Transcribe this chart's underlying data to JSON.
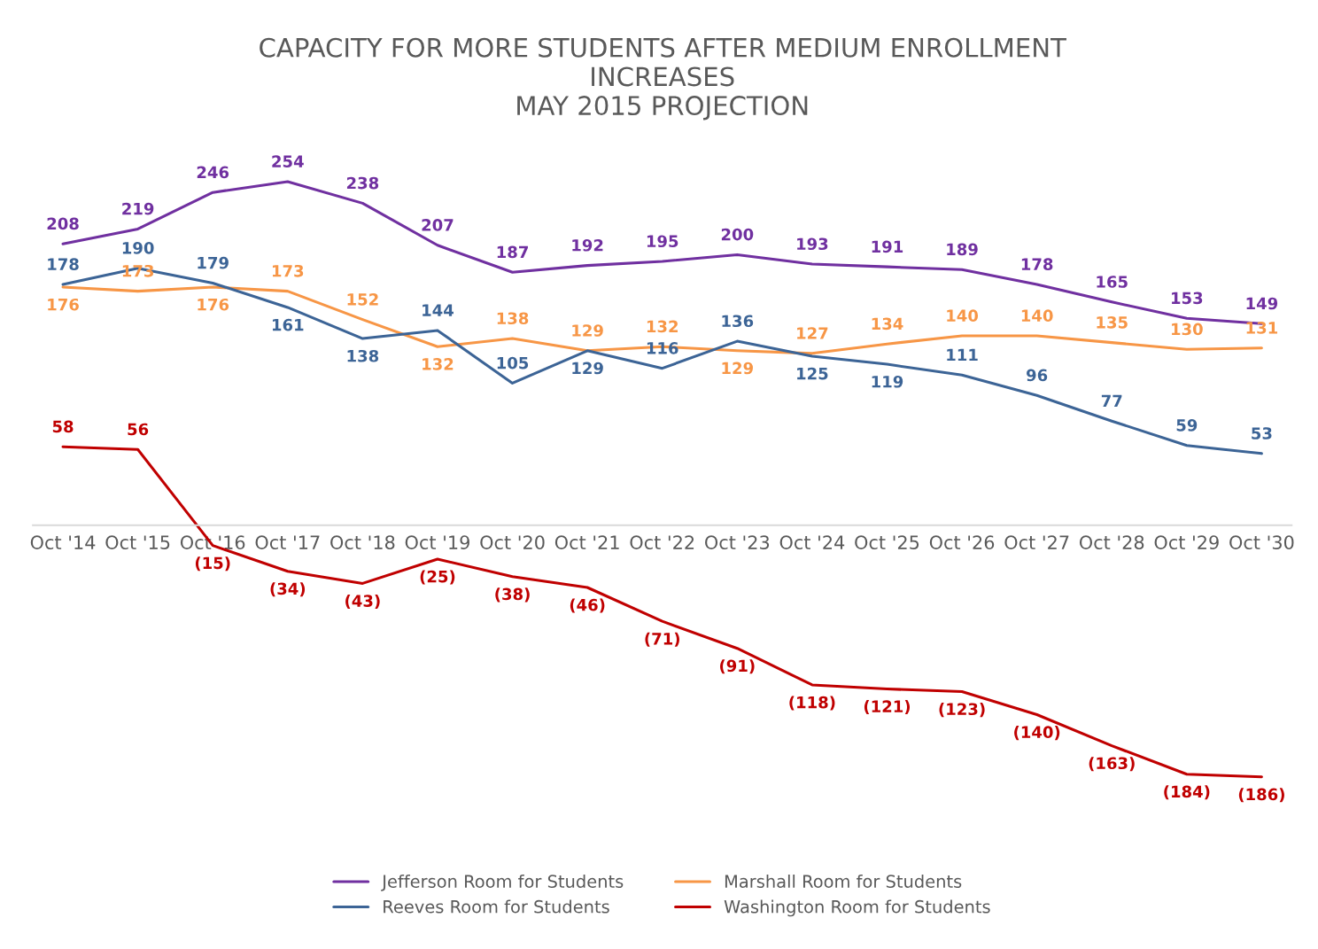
{
  "chart_data": {
    "type": "line",
    "title": "CAPACITY FOR MORE STUDENTS AFTER MEDIUM ENROLLMENT\nINCREASES\nMAY 2015 PROJECTION",
    "categories": [
      "Oct '14",
      "Oct '15",
      "Oct '16",
      "Oct '17",
      "Oct '18",
      "Oct '19",
      "Oct '20",
      "Oct '21",
      "Oct '22",
      "Oct '23",
      "Oct '24",
      "Oct '25",
      "Oct '26",
      "Oct '27",
      "Oct '28",
      "Oct '29",
      "Oct '30"
    ],
    "series": [
      {
        "name": "Jefferson Room for Students",
        "color": "#7030a0",
        "values": [
          208,
          219,
          246,
          254,
          238,
          207,
          187,
          192,
          195,
          200,
          193,
          191,
          189,
          178,
          165,
          153,
          149
        ],
        "value_labels": [
          "208",
          "219",
          "246",
          "254",
          "238",
          "207",
          "187",
          "192",
          "195",
          "200",
          "193",
          "191",
          "189",
          "178",
          "165",
          "153",
          "149"
        ]
      },
      {
        "name": "Marshall Room for Students",
        "color": "#f79646",
        "values": [
          176,
          173,
          176,
          173,
          152,
          132,
          138,
          129,
          132,
          129,
          127,
          134,
          140,
          140,
          135,
          130,
          131
        ],
        "value_labels": [
          "176",
          "173",
          "176",
          "173",
          "152",
          "132",
          "138",
          "129",
          "132",
          "129",
          "127",
          "134",
          "140",
          "140",
          "135",
          "130",
          "131"
        ]
      },
      {
        "name": "Reeves Room for Students",
        "color": "#3c6496",
        "values": [
          178,
          190,
          179,
          161,
          138,
          144,
          105,
          129,
          116,
          136,
          125,
          119,
          111,
          96,
          77,
          59,
          53
        ],
        "value_labels": [
          "178",
          "190",
          "179",
          "161",
          "138",
          "144",
          "105",
          "129",
          "116",
          "136",
          "125",
          "119",
          "111",
          "96",
          "77",
          "59",
          "53"
        ]
      },
      {
        "name": "Washington Room for Students",
        "color": "#c00000",
        "values": [
          58,
          56,
          -15,
          -34,
          -43,
          -25,
          -38,
          -46,
          -71,
          -91,
          -118,
          -121,
          -123,
          -140,
          -163,
          -184,
          -186
        ],
        "value_labels": [
          "58",
          "56",
          "(15)",
          "(34)",
          "(43)",
          "(25)",
          "(38)",
          "(46)",
          "(71)",
          "(91)",
          "(118)",
          "(121)",
          "(123)",
          "(140)",
          "(163)",
          "(184)",
          "(186)"
        ]
      }
    ],
    "legend": "bottom",
    "grid": false,
    "line_style": "solid",
    "marker": "none"
  }
}
